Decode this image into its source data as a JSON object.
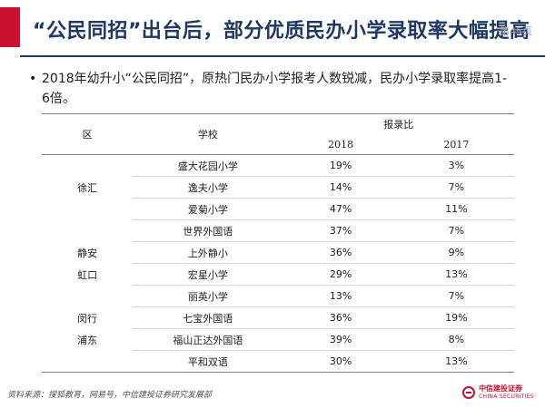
{
  "header": {
    "title": "“公民同招”出台后，部分优质民办小学录取率大幅提高",
    "page_num": "第45页"
  },
  "bullet": {
    "text": "2018年幼升小“公民同招”，原热门民办小学报考人数锐减，民办小学录取率提高1-6倍。"
  },
  "table": {
    "col_region": "区",
    "col_school": "学校",
    "col_ratio": "报录比",
    "year1": "2018",
    "year2": "2017",
    "rows": [
      {
        "region": "",
        "school": "盛大花园小学",
        "v2018": "19%",
        "v2017": "3%"
      },
      {
        "region": "徐汇",
        "school": "逸夫小学",
        "v2018": "14%",
        "v2017": "7%"
      },
      {
        "region": "",
        "school": "爱菊小学",
        "v2018": "47%",
        "v2017": "11%"
      },
      {
        "region": "",
        "school": "世界外国语",
        "v2018": "37%",
        "v2017": "7%"
      },
      {
        "region": "静安",
        "school": "上外静小",
        "v2018": "36%",
        "v2017": "9%"
      },
      {
        "region": "虹口",
        "school": "宏星小学",
        "v2018": "29%",
        "v2017": "13%"
      },
      {
        "region": "",
        "school": "丽英小学",
        "v2018": "13%",
        "v2017": "7%"
      },
      {
        "region": "闵行",
        "school": "七宝外国语",
        "v2018": "36%",
        "v2017": "19%"
      },
      {
        "region": "浦东",
        "school": "福山正达外国语",
        "v2018": "39%",
        "v2017": "8%"
      },
      {
        "region": "",
        "school": "平和双语",
        "v2018": "30%",
        "v2017": "13%"
      }
    ]
  },
  "footer": {
    "source": "资料来源：搜狐教育，网易号，中信建投证券研究发展部",
    "logo_cn": "中信建投证券",
    "logo_en": "CHINA SECURITIES"
  },
  "colors": {
    "accent": "#c8102e",
    "title": "#1f3864"
  }
}
